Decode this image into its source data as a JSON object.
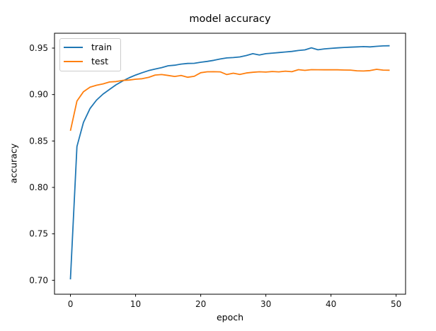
{
  "chart_data": {
    "type": "line",
    "title": "model accuracy",
    "xlabel": "epoch",
    "ylabel": "accuracy",
    "grid": false,
    "legend_position": "upper left",
    "xlim": [
      -2.45,
      51.45
    ],
    "ylim": [
      0.685,
      0.966
    ],
    "xticks": {
      "values": [
        0,
        10,
        20,
        30,
        40,
        50
      ],
      "labels": [
        "0",
        "10",
        "20",
        "30",
        "40",
        "50"
      ]
    },
    "yticks": {
      "values": [
        0.7,
        0.75,
        0.8,
        0.85,
        0.9,
        0.95
      ],
      "labels": [
        "0.70",
        "0.75",
        "0.80",
        "0.85",
        "0.90",
        "0.95"
      ]
    },
    "x": [
      0,
      1,
      2,
      3,
      4,
      5,
      6,
      7,
      8,
      9,
      10,
      11,
      12,
      13,
      14,
      15,
      16,
      17,
      18,
      19,
      20,
      21,
      22,
      23,
      24,
      25,
      26,
      27,
      28,
      29,
      30,
      31,
      32,
      33,
      34,
      35,
      36,
      37,
      38,
      39,
      40,
      41,
      42,
      43,
      44,
      45,
      46,
      47,
      48,
      49
    ],
    "series": [
      {
        "name": "train",
        "color": "#1f77b4",
        "values": [
          0.701,
          0.844,
          0.87,
          0.885,
          0.894,
          0.9005,
          0.9055,
          0.9105,
          0.9145,
          0.918,
          0.921,
          0.9235,
          0.9258,
          0.9275,
          0.929,
          0.931,
          0.9316,
          0.9328,
          0.9335,
          0.9336,
          0.9348,
          0.9357,
          0.9368,
          0.9383,
          0.9394,
          0.9398,
          0.9405,
          0.942,
          0.944,
          0.9426,
          0.944,
          0.9446,
          0.9452,
          0.9458,
          0.9464,
          0.9474,
          0.9481,
          0.9503,
          0.9482,
          0.9492,
          0.9497,
          0.9502,
          0.9507,
          0.951,
          0.9513,
          0.9516,
          0.9513,
          0.9519,
          0.9524,
          0.9525
        ]
      },
      {
        "name": "test",
        "color": "#ff7f0e",
        "values": [
          0.861,
          0.893,
          0.903,
          0.908,
          0.91,
          0.9115,
          0.9135,
          0.914,
          0.9152,
          0.9156,
          0.9165,
          0.917,
          0.9185,
          0.921,
          0.9215,
          0.9205,
          0.9195,
          0.9205,
          0.9186,
          0.9196,
          0.9235,
          0.9245,
          0.9246,
          0.9244,
          0.9215,
          0.923,
          0.9216,
          0.9232,
          0.924,
          0.9245,
          0.9242,
          0.9248,
          0.9244,
          0.9252,
          0.9246,
          0.9268,
          0.926,
          0.9268,
          0.9267,
          0.9266,
          0.9266,
          0.9266,
          0.9264,
          0.9263,
          0.9256,
          0.9253,
          0.9258,
          0.9272,
          0.9263,
          0.9262
        ]
      }
    ]
  }
}
